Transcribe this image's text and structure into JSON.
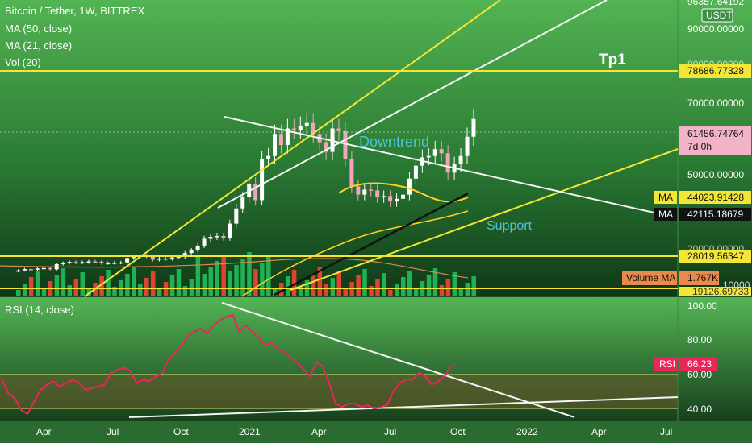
{
  "header": {
    "symbol": "Bitcoin / Tether, 1W, BITTREX",
    "indicators": [
      "MA (50, close)",
      "MA (21, close)",
      "Vol (20)"
    ],
    "currency_badge": "USDT"
  },
  "rsi_legend": "RSI (14, close)",
  "annotations": {
    "tp1": "Tp1",
    "downtrend": "Downtrend",
    "support": "Support"
  },
  "price_axis": {
    "ticks": [
      "90000.00000",
      "70000.00000",
      "50000.00000",
      "28019.56347"
    ],
    "top_tag": "96357.64192",
    "tp1_tag": "78686.77328",
    "cut_tag_1": "80000.00000",
    "cut_tag_2": "20000.00000",
    "cut_tag_3": "19126.69733",
    "cut_tag_4": "10000"
  },
  "tags": {
    "last_price": "61456.74764",
    "countdown": "7d 0h",
    "ma1_label": "MA",
    "ma1_value": "44023.91428",
    "ma2_label": "MA",
    "ma2_value": "42115.18679",
    "volume_ma_label": "Volume MA",
    "volume_ma_value": "1.767K",
    "rsi_label": "RSI",
    "rsi_value": "66.23"
  },
  "rsi_axis": {
    "ticks": [
      "100.00",
      "80.00",
      "60.00",
      "40.00"
    ]
  },
  "time_axis": {
    "labels": [
      "Apr",
      "Jul",
      "Oct",
      "2021",
      "Apr",
      "Jul",
      "Oct",
      "2022",
      "Apr",
      "Jul"
    ]
  },
  "chart_data": [
    {
      "type": "candlestick",
      "title": "Bitcoin / Tether, 1W, BITTREX",
      "ylim": [
        0,
        100000
      ],
      "horizontal_levels": [
        78686.77328,
        28019.56347,
        19126.69733
      ],
      "last_price": 61456.74764,
      "candles_close_approx": [
        6500,
        7000,
        6800,
        7200,
        7400,
        6900,
        8800,
        9200,
        9600,
        9300,
        9500,
        9800,
        9700,
        9100,
        9200,
        9300,
        9400,
        11000,
        11500,
        11800,
        11600,
        10400,
        10800,
        10700,
        11200,
        11500,
        12800,
        13800,
        15500,
        18000,
        18700,
        19000,
        18400,
        23500,
        29000,
        33000,
        38000,
        32000,
        47000,
        48000,
        56000,
        52000,
        58000,
        57500,
        58800,
        60000,
        56000,
        53000,
        49500,
        58000,
        57000,
        47000,
        37000,
        34000,
        35800,
        35500,
        33000,
        33500,
        31500,
        32500,
        34000,
        39800,
        44500,
        47500,
        48000,
        50500,
        49000,
        42000,
        45000,
        48000,
        55000,
        61456
      ]
    },
    {
      "type": "line",
      "title": "RSI (14, close)",
      "ylim": [
        35,
        105
      ],
      "band": [
        40,
        60
      ],
      "last_value": 66.23,
      "values_approx": [
        58,
        50,
        47,
        40,
        38,
        45,
        52,
        55,
        57,
        54,
        56,
        58,
        56,
        52,
        53,
        54,
        55,
        62,
        64,
        65,
        63,
        56,
        58,
        57,
        60,
        62,
        70,
        74,
        78,
        84,
        86,
        88,
        85,
        90,
        93,
        95,
        96,
        86,
        90,
        86,
        83,
        78,
        80,
        76,
        74,
        71,
        68,
        64,
        60,
        68,
        66,
        56,
        44,
        42,
        44,
        44,
        42,
        43,
        41,
        42,
        43,
        51,
        56,
        58,
        58,
        62,
        60,
        55,
        57,
        60,
        66,
        66.23
      ]
    }
  ]
}
